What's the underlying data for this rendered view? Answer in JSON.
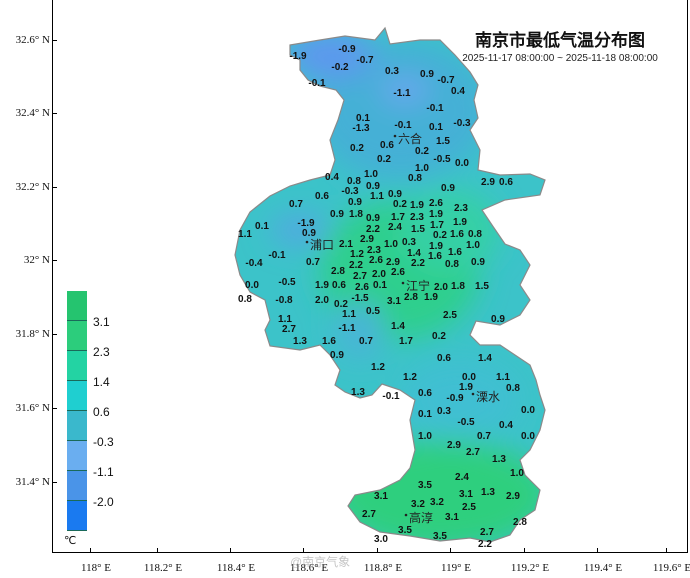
{
  "title": "南京市最低气温分布图",
  "subtitle": "2025-11-17 08:00:00 ~ 2025-11-18 08:00:00",
  "axes": {
    "y_labels": [
      "32.6° N",
      "32.4° N",
      "32.2° N",
      "32° N",
      "31.8° N",
      "31.6° N",
      "31.4° N"
    ],
    "x_labels": [
      "118° E",
      "118.2° E",
      "118.4° E",
      "118.6° E",
      "118.8° E",
      "119° E",
      "119.2° E",
      "119.4° E",
      "119.6° E"
    ]
  },
  "legend": {
    "unit": "℃",
    "labels": [
      "3.1",
      "2.3",
      "1.4",
      "0.6",
      "-0.3",
      "-1.1",
      "-2.0"
    ],
    "colors": [
      "#25c46f",
      "#2ccd7c",
      "#23d3a3",
      "#1fcfd0",
      "#3ab8cc",
      "#6aaef0",
      "#4a94e8",
      "#1a7af0"
    ]
  },
  "places": [
    "六合",
    "浦口",
    "江宁",
    "溧水",
    "高淳"
  ],
  "stations": [
    "-1.9",
    "-0.9",
    "-0.7",
    "-0.2",
    "0.3",
    "0.9",
    "-0.7",
    "0.4",
    "-0.1",
    "-1.1",
    "-0.1",
    "0.1",
    "-1.3",
    "-0.1",
    "0.1",
    "-0.3",
    "0.6",
    "1.5",
    "0.2",
    "0.2",
    "-0.5",
    "0.0",
    "0.2",
    "1.0",
    "0.8",
    "0.9",
    "0.4",
    "1.0",
    "0.8",
    "0.9",
    "1.1",
    "2.9",
    "0.6",
    "0.6",
    "-0.3",
    "0.9",
    "0.9",
    "0.2",
    "0.7",
    "1.9",
    "2.3",
    "0.9",
    "1.8",
    "0.9",
    "1.7",
    "2.3",
    "1.9",
    "2.6",
    "1.9",
    "-1.9",
    "0.1",
    "1.1",
    "2.2",
    "2.4",
    "1.5",
    "1.7",
    "0.2",
    "1.6",
    "1.9",
    "0.8",
    "0.9",
    "2.9",
    "2.1",
    "1.2",
    "2.3",
    "1.0",
    "0.3",
    "1.4",
    "1.6",
    "1.0",
    "1.6",
    "0.8",
    "2.2",
    "-0.1",
    "-0.4",
    "0.7",
    "2.2",
    "2.6",
    "2.9",
    "0.9",
    "2.8",
    "2.7",
    "2.0",
    "2.6",
    "0.0",
    "-0.5",
    "1.9",
    "0.6",
    "2.6",
    "0.1",
    "2.8",
    "1.9",
    "2.0",
    "1.8",
    "1.5",
    "0.8",
    "-0.8",
    "2.0",
    "0.2",
    "1.1",
    "-1.5",
    "3.1",
    "0.5",
    "2.5",
    "0.9",
    "1.1",
    "2.7",
    "-1.1",
    "1.4",
    "1.3",
    "1.6",
    "0.7",
    "1.7",
    "0.2",
    "0.9",
    "0.6",
    "1.4",
    "1.2",
    "1.2",
    "0.0",
    "1.1",
    "1.9",
    "0.8",
    "1.3",
    "-0.1",
    "0.6",
    "-0.9",
    "0.0",
    "0.1",
    "0.3",
    "-0.5",
    "0.4",
    "1.0",
    "0.7",
    "0.0",
    "2.9",
    "2.7",
    "1.3",
    "1.0",
    "2.4",
    "3.5",
    "3.1",
    "3.1",
    "1.3",
    "2.9",
    "2.5",
    "3.2",
    "3.2",
    "2.7",
    "3.1",
    "2.8",
    "3.5",
    "2.7",
    "3.5",
    "3.0",
    "2.2"
  ],
  "watermark": "@南京气象"
}
